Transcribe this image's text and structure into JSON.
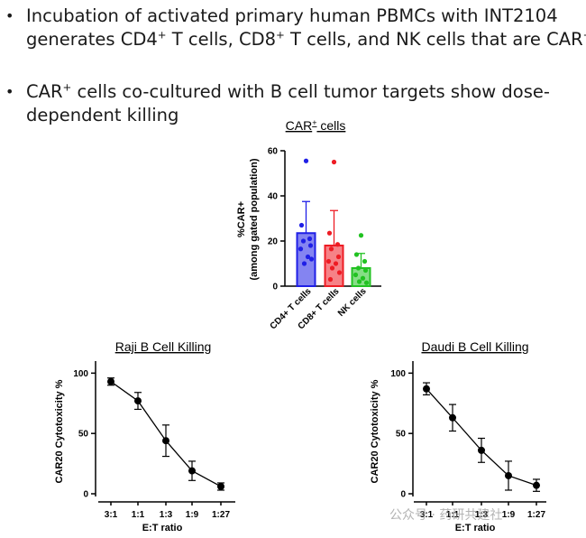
{
  "bullets": [
    {
      "line1_pre": "Incubation of activated primary human PBMCs with INT2104",
      "line2_a": "generates CD4",
      "line2_sup1": "+",
      "line2_b": " T cells, CD8",
      "line2_sup2": "+",
      "line2_c": " T cells, and NK cells that are CAR",
      "line2_sup3": "+"
    },
    {
      "line1_a": "CAR",
      "line1_sup": "+",
      "line1_b": " cells co-cultured with B cell tumor targets show dose-",
      "line2": "dependent killing"
    }
  ],
  "watermark": "公众号 · 药研共建社",
  "colors": {
    "blue": "#1f1fe6",
    "red": "#ee1c24",
    "green": "#22c222",
    "black": "#000000"
  },
  "chart_data": [
    {
      "type": "bar",
      "title_pre": "CAR",
      "title_sup": "+",
      "title_post": " cells",
      "ylabel_line1": "%CAR+",
      "ylabel_line2": "(among gated population)",
      "ylim": [
        0,
        60
      ],
      "yticks": [
        0,
        20,
        40,
        60
      ],
      "categories": [
        "CD4+ T cells",
        "CD8+ T cells",
        "NK cells"
      ],
      "series": [
        {
          "name": "CD4+ T cells",
          "color": "#1f1fe6",
          "mean": 23.5,
          "error": 14,
          "points": [
            55.5,
            27,
            21,
            20,
            18,
            16.5,
            13,
            10,
            12
          ]
        },
        {
          "name": "CD8+ T cells",
          "color": "#ee1c24",
          "mean": 18,
          "error": 15.5,
          "points": [
            55,
            23.5,
            18.5,
            16.5,
            13,
            11,
            10,
            8,
            6,
            3
          ]
        },
        {
          "name": "NK cells",
          "color": "#22c222",
          "mean": 8,
          "error": 6.5,
          "points": [
            22.5,
            14,
            11,
            8,
            7,
            5,
            3.5,
            2,
            1.5
          ]
        }
      ]
    },
    {
      "type": "line",
      "title": "Raji B Cell Killing",
      "xlabel": "E:T ratio",
      "ylabel": "CAR20 Cytotoxicity %",
      "ylim": [
        0,
        110
      ],
      "yticks": [
        0,
        50,
        100
      ],
      "categories": [
        "3:1",
        "1:1",
        "1:3",
        "1:9",
        "1:27"
      ],
      "values": [
        93,
        77,
        44,
        19,
        6
      ],
      "errors": [
        3,
        7,
        13,
        8,
        3
      ]
    },
    {
      "type": "line",
      "title": "Daudi B Cell Killing",
      "xlabel": "E:T ratio",
      "ylabel": "CAR20 Cytotoxicity %",
      "ylim": [
        0,
        110
      ],
      "yticks": [
        0,
        50,
        100
      ],
      "categories": [
        "3:1",
        "1:1",
        "1:3",
        "1:9",
        "1:27"
      ],
      "values": [
        87,
        63,
        36,
        15,
        7
      ],
      "errors": [
        5,
        11,
        10,
        12,
        5
      ]
    }
  ]
}
